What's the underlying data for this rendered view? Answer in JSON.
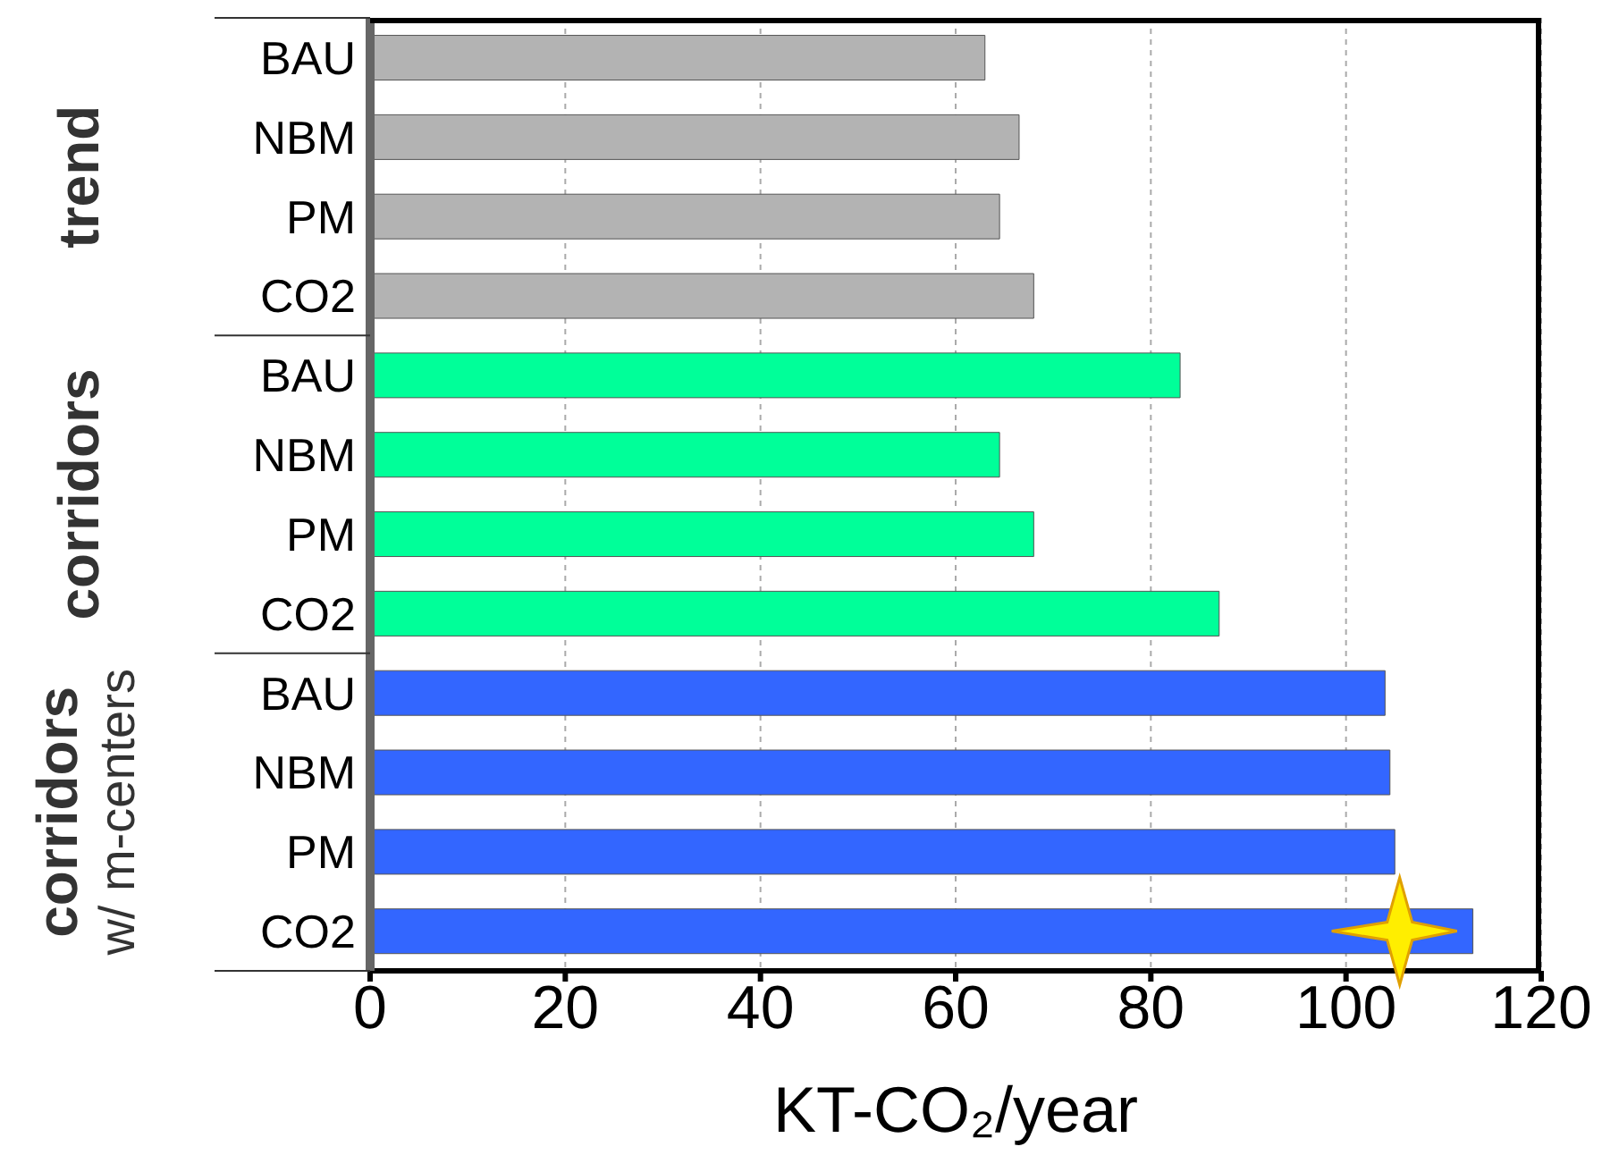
{
  "chart_data": {
    "type": "bar",
    "orientation": "horizontal",
    "xlabel": "KT-CO₂/year",
    "categories": [
      "BAU",
      "NBM",
      "PM",
      "CO2",
      "BAU",
      "NBM",
      "PM",
      "CO2",
      "BAU",
      "NBM",
      "PM",
      "CO2"
    ],
    "values": [
      63,
      66.5,
      64.5,
      68,
      83,
      64.5,
      68,
      87,
      104,
      104.5,
      105,
      113
    ],
    "colors": [
      "#b3b3b3",
      "#b3b3b3",
      "#b3b3b3",
      "#b3b3b3",
      "#00ff99",
      "#00ff99",
      "#00ff99",
      "#00ff99",
      "#3366ff",
      "#3366ff",
      "#3366ff",
      "#3366ff"
    ],
    "xlim": [
      0,
      120
    ],
    "xticks": [
      0,
      20,
      40,
      60,
      80,
      100,
      120
    ],
    "grid": "x",
    "annotations": [
      "trend",
      "corridors",
      "corridors\nw/ m-centers"
    ]
  }
}
